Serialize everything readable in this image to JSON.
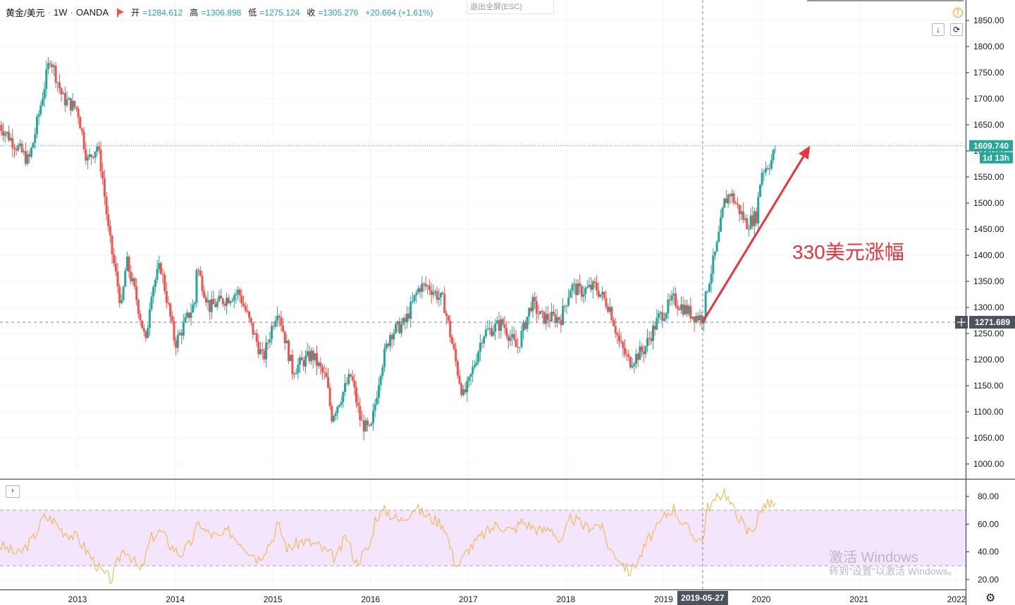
{
  "header": {
    "symbol": "黄金/美元",
    "sep": "·",
    "interval": "1W",
    "source": "OANDA",
    "open_label": "开",
    "open_value": "=1284.612",
    "high_label": "高",
    "high_value": "=1306.898",
    "low_label": "低",
    "low_value": "=1275.124",
    "close_label": "收",
    "close_value": "=1305.276",
    "change": "+20.664 (+1.61%)"
  },
  "esc_hint": "退出全屏(ESC)",
  "annotation": "330美元涨幅",
  "watermark": {
    "line1": "激活 Windows",
    "line2": "转到\"设置\"以激活 Windows。"
  },
  "colors": {
    "up": "#26a69a",
    "down": "#ef5350",
    "annotation": "#e8343a",
    "rsi": "#f5b041",
    "rsi_band": "#f3e5fb"
  },
  "chart_data": {
    "type": "candlestick",
    "price_axis": {
      "min": 975,
      "max": 1870,
      "ticks": [
        1000,
        1050,
        1100,
        1150,
        1200,
        1250,
        1300,
        1350,
        1400,
        1450,
        1500,
        1550,
        1600,
        1650,
        1700,
        1750,
        1800,
        1850
      ]
    },
    "tick_format": ".00",
    "time_axis": {
      "start": 2012.2,
      "end": 2022.0,
      "ticks": [
        {
          "x": 2013,
          "label": "2013"
        },
        {
          "x": 2014,
          "label": "2014"
        },
        {
          "x": 2015,
          "label": "2015"
        },
        {
          "x": 2016,
          "label": "2016"
        },
        {
          "x": 2017,
          "label": "2017"
        },
        {
          "x": 2018,
          "label": "2018"
        },
        {
          "x": 2019,
          "label": "2019"
        },
        {
          "x": 2020,
          "label": "2020"
        },
        {
          "x": 2021,
          "label": "2021"
        },
        {
          "x": 2022,
          "label": "2022"
        }
      ]
    },
    "price_path": [
      [
        2012.2,
        1650
      ],
      [
        2012.5,
        1580
      ],
      [
        2012.55,
        1620
      ],
      [
        2012.72,
        1780
      ],
      [
        2012.85,
        1700
      ],
      [
        2013.0,
        1680
      ],
      [
        2013.1,
        1580
      ],
      [
        2013.2,
        1610
      ],
      [
        2013.25,
        1560
      ],
      [
        2013.32,
        1440
      ],
      [
        2013.45,
        1300
      ],
      [
        2013.5,
        1390
      ],
      [
        2013.6,
        1320
      ],
      [
        2013.7,
        1230
      ],
      [
        2013.75,
        1330
      ],
      [
        2013.85,
        1380
      ],
      [
        2013.95,
        1280
      ],
      [
        2014.0,
        1230
      ],
      [
        2014.2,
        1310
      ],
      [
        2014.22,
        1380
      ],
      [
        2014.35,
        1300
      ],
      [
        2014.55,
        1320
      ],
      [
        2014.65,
        1330
      ],
      [
        2014.9,
        1200
      ],
      [
        2015.0,
        1270
      ],
      [
        2015.05,
        1300
      ],
      [
        2015.2,
        1180
      ],
      [
        2015.4,
        1210
      ],
      [
        2015.55,
        1160
      ],
      [
        2015.6,
        1090
      ],
      [
        2015.8,
        1170
      ],
      [
        2015.9,
        1080
      ],
      [
        2016.0,
        1060
      ],
      [
        2016.1,
        1180
      ],
      [
        2016.2,
        1250
      ],
      [
        2016.35,
        1270
      ],
      [
        2016.5,
        1340
      ],
      [
        2016.6,
        1340
      ],
      [
        2016.75,
        1310
      ],
      [
        2016.9,
        1170
      ],
      [
        2016.95,
        1130
      ],
      [
        2017.0,
        1150
      ],
      [
        2017.15,
        1250
      ],
      [
        2017.35,
        1270
      ],
      [
        2017.5,
        1220
      ],
      [
        2017.65,
        1310
      ],
      [
        2017.75,
        1280
      ],
      [
        2017.95,
        1280
      ],
      [
        2018.05,
        1340
      ],
      [
        2018.15,
        1330
      ],
      [
        2018.3,
        1340
      ],
      [
        2018.45,
        1300
      ],
      [
        2018.55,
        1230
      ],
      [
        2018.65,
        1195
      ],
      [
        2018.8,
        1220
      ],
      [
        2018.95,
        1280
      ],
      [
        2019.0,
        1290
      ],
      [
        2019.1,
        1315
      ],
      [
        2019.2,
        1300
      ],
      [
        2019.3,
        1285
      ],
      [
        2019.4,
        1280
      ],
      [
        2019.45,
        1340
      ],
      [
        2019.55,
        1420
      ],
      [
        2019.62,
        1500
      ],
      [
        2019.68,
        1520
      ],
      [
        2019.75,
        1495
      ],
      [
        2019.85,
        1460
      ],
      [
        2019.95,
        1475
      ],
      [
        2020.0,
        1560
      ],
      [
        2020.1,
        1580
      ],
      [
        2020.15,
        1609
      ]
    ],
    "last_price": {
      "value": 1609.74,
      "label": "1609.740",
      "countdown": "1d 13h"
    },
    "crosshair": {
      "x": 2019.4,
      "price": 1271.689,
      "price_label": "1271.689",
      "date_label": "2019-05-27"
    },
    "arrow": {
      "from": [
        2019.4,
        1272
      ],
      "to": [
        2020.5,
        1610
      ]
    },
    "rsi": {
      "ticks": [
        20,
        40,
        60,
        80
      ],
      "tick_format": ".00",
      "upper": 70,
      "lower": 30,
      "path": [
        [
          2012.2,
          45
        ],
        [
          2012.4,
          38
        ],
        [
          2012.55,
          50
        ],
        [
          2012.65,
          65
        ],
        [
          2012.75,
          63
        ],
        [
          2012.85,
          55
        ],
        [
          2013.0,
          50
        ],
        [
          2013.15,
          35
        ],
        [
          2013.25,
          25
        ],
        [
          2013.35,
          20
        ],
        [
          2013.45,
          40
        ],
        [
          2013.5,
          42
        ],
        [
          2013.65,
          25
        ],
        [
          2013.75,
          50
        ],
        [
          2013.85,
          55
        ],
        [
          2013.95,
          45
        ],
        [
          2014.05,
          38
        ],
        [
          2014.15,
          45
        ],
        [
          2014.25,
          62
        ],
        [
          2014.3,
          55
        ],
        [
          2014.45,
          50
        ],
        [
          2014.55,
          55
        ],
        [
          2014.7,
          45
        ],
        [
          2014.85,
          35
        ],
        [
          2015.0,
          50
        ],
        [
          2015.05,
          60
        ],
        [
          2015.15,
          42
        ],
        [
          2015.3,
          48
        ],
        [
          2015.45,
          45
        ],
        [
          2015.55,
          40
        ],
        [
          2015.65,
          35
        ],
        [
          2015.75,
          52
        ],
        [
          2015.85,
          32
        ],
        [
          2016.0,
          45
        ],
        [
          2016.05,
          65
        ],
        [
          2016.15,
          70
        ],
        [
          2016.3,
          62
        ],
        [
          2016.45,
          72
        ],
        [
          2016.6,
          65
        ],
        [
          2016.75,
          60
        ],
        [
          2016.85,
          35
        ],
        [
          2016.9,
          30
        ],
        [
          2017.0,
          42
        ],
        [
          2017.15,
          52
        ],
        [
          2017.3,
          60
        ],
        [
          2017.45,
          55
        ],
        [
          2017.55,
          62
        ],
        [
          2017.75,
          55
        ],
        [
          2017.85,
          58
        ],
        [
          2017.95,
          45
        ],
        [
          2018.05,
          65
        ],
        [
          2018.2,
          58
        ],
        [
          2018.35,
          60
        ],
        [
          2018.45,
          42
        ],
        [
          2018.55,
          35
        ],
        [
          2018.65,
          25
        ],
        [
          2018.75,
          35
        ],
        [
          2018.85,
          50
        ],
        [
          2018.95,
          58
        ],
        [
          2019.0,
          65
        ],
        [
          2019.1,
          72
        ],
        [
          2019.2,
          60
        ],
        [
          2019.3,
          52
        ],
        [
          2019.4,
          48
        ],
        [
          2019.45,
          72
        ],
        [
          2019.55,
          78
        ],
        [
          2019.62,
          85
        ],
        [
          2019.7,
          72
        ],
        [
          2019.78,
          65
        ],
        [
          2019.85,
          54
        ],
        [
          2019.95,
          60
        ],
        [
          2020.0,
          72
        ],
        [
          2020.1,
          75
        ],
        [
          2020.15,
          72
        ]
      ]
    }
  }
}
